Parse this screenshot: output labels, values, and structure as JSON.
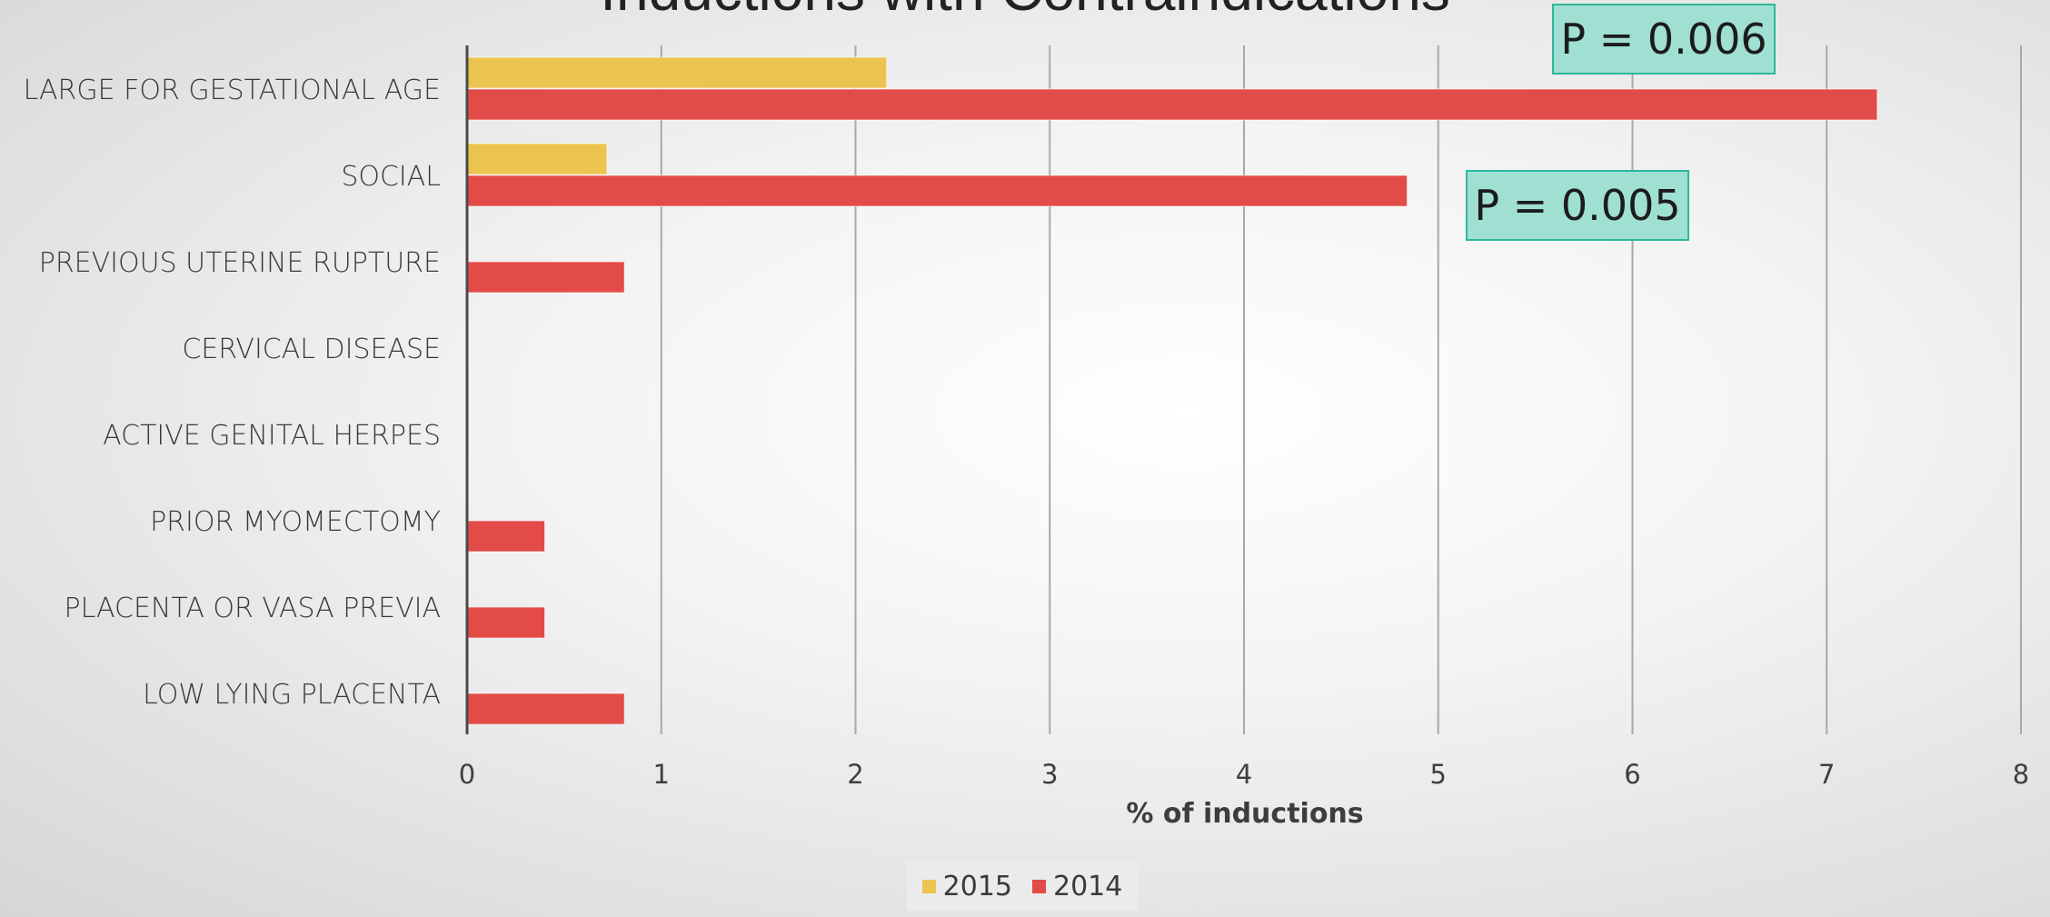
{
  "chart_data": {
    "type": "bar",
    "orientation": "horizontal",
    "title": "Inductions with Contraindications",
    "xlabel": "% of inductions",
    "ylabel": "",
    "xlim": [
      0,
      8
    ],
    "xticks": [
      "0",
      "1",
      "2",
      "3",
      "4",
      "5",
      "6",
      "7",
      "8"
    ],
    "categories": [
      "LARGE FOR GESTATIONAL AGE",
      "SOCIAL",
      "PREVIOUS UTERINE RUPTURE",
      "CERVICAL DISEASE",
      "ACTIVE GENITAL HERPES",
      "PRIOR MYOMECTOMY",
      "PLACENTA OR VASA PREVIA",
      "LOW LYING PLACENTA"
    ],
    "series": [
      {
        "name": "2015",
        "color": "#ebc44f",
        "values": [
          2.16,
          0.72,
          0,
          0,
          0,
          0,
          0,
          0
        ]
      },
      {
        "name": "2014",
        "color": "#e34b48",
        "values": [
          7.26,
          4.84,
          0.81,
          0,
          0,
          0.4,
          0.4,
          0.81
        ]
      }
    ],
    "annotations": [
      {
        "text": "P = 0.006",
        "category": "LARGE FOR GESTATIONAL AGE"
      },
      {
        "text": "P = 0.005",
        "category": "SOCIAL"
      }
    ],
    "grid": true,
    "legend_position": "bottom"
  }
}
